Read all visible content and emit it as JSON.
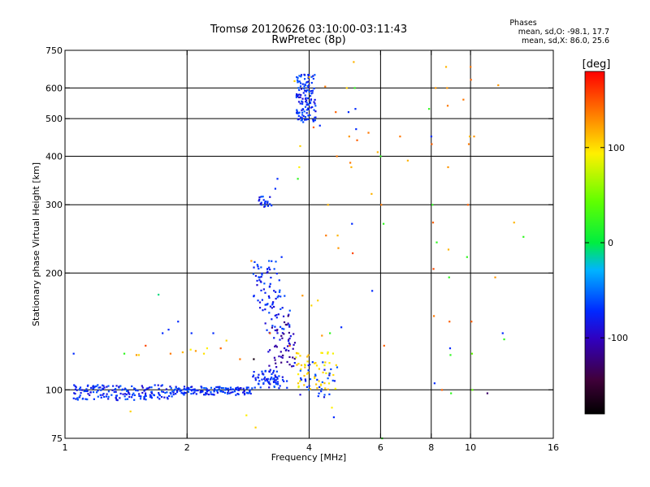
{
  "chart_data": {
    "type": "scatter",
    "title": "Tromsø 20120626 03:10:00-03:11:43",
    "subtitle": "RwPretec (8p)",
    "xlabel": "Frequency [MHz]",
    "ylabel": "Stationary phase Virtual Height [km]",
    "x_scale": "log",
    "y_scale": "log",
    "xlim": [
      1,
      16
    ],
    "ylim": [
      75,
      750
    ],
    "x_ticks": [
      1,
      2,
      4,
      6,
      8,
      10,
      16
    ],
    "x_tick_labels": [
      "1",
      "2",
      "4",
      "6",
      "8",
      "10",
      "16"
    ],
    "y_ticks": [
      75,
      100,
      200,
      300,
      400,
      500,
      600,
      750
    ],
    "y_tick_labels": [
      "75",
      "100",
      "200",
      "300",
      "400",
      "500",
      "600",
      "750"
    ],
    "grid": true,
    "phases_box": {
      "title": "Phases",
      "line1": "mean, sd,O: -98.1, 17.7",
      "line2": "mean, sd,X:  86.0, 25.6"
    },
    "colorbar": {
      "label": "[deg]",
      "min": -180,
      "max": 180,
      "ticks": [
        100,
        0,
        -100
      ],
      "tick_labels": [
        "100",
        "0",
        "-100"
      ]
    },
    "clusters": [
      {
        "x_range": [
          1.05,
          1.85
        ],
        "y_range": [
          94,
          103
        ],
        "phase": -100,
        "count": 170
      },
      {
        "x_range": [
          1.85,
          2.9
        ],
        "y_range": [
          97,
          102
        ],
        "phase": -100,
        "count": 140
      },
      {
        "x_range": [
          2.9,
          3.6
        ],
        "y_range": [
          101,
          112
        ],
        "phase": -100,
        "count": 70
      },
      {
        "x_range": [
          2.9,
          3.4
        ],
        "y_range": [
          160,
          215
        ],
        "phase": -100,
        "count": 55
      },
      {
        "x_range": [
          3.1,
          3.6
        ],
        "y_range": [
          140,
          175
        ],
        "phase": -100,
        "count": 35
      },
      {
        "x_range": [
          3.15,
          3.7
        ],
        "y_range": [
          112,
          150
        ],
        "phase": -120,
        "count": 55
      },
      {
        "x_range": [
          3.0,
          3.25
        ],
        "y_range": [
          296,
          315
        ],
        "phase": -100,
        "count": 22
      },
      {
        "x_range": [
          3.72,
          4.15
        ],
        "y_range": [
          490,
          650
        ],
        "phase": -100,
        "count": 130
      },
      {
        "x_range": [
          3.7,
          4.7
        ],
        "y_range": [
          100,
          125
        ],
        "phase": 95,
        "count": 55
      },
      {
        "x_range": [
          3.8,
          4.7
        ],
        "y_range": [
          95,
          118
        ],
        "phase": -100,
        "count": 35
      }
    ],
    "points": [
      {
        "x": 1.05,
        "y": 124,
        "phase": -100
      },
      {
        "x": 1.28,
        "y": 96,
        "phase": -85
      },
      {
        "x": 1.4,
        "y": 124,
        "phase": 20
      },
      {
        "x": 1.45,
        "y": 88,
        "phase": 100
      },
      {
        "x": 1.5,
        "y": 123,
        "phase": 120
      },
      {
        "x": 1.52,
        "y": 123,
        "phase": 100
      },
      {
        "x": 1.58,
        "y": 130,
        "phase": 150
      },
      {
        "x": 1.7,
        "y": 176,
        "phase": -20
      },
      {
        "x": 1.74,
        "y": 140,
        "phase": -100
      },
      {
        "x": 1.8,
        "y": 143,
        "phase": -100
      },
      {
        "x": 1.82,
        "y": 124,
        "phase": 130
      },
      {
        "x": 1.9,
        "y": 150,
        "phase": -100
      },
      {
        "x": 1.95,
        "y": 125,
        "phase": 110
      },
      {
        "x": 2.04,
        "y": 127,
        "phase": 90
      },
      {
        "x": 2.05,
        "y": 140,
        "phase": -100
      },
      {
        "x": 2.1,
        "y": 126,
        "phase": 120
      },
      {
        "x": 2.2,
        "y": 124,
        "phase": 95
      },
      {
        "x": 2.24,
        "y": 128,
        "phase": 90
      },
      {
        "x": 2.32,
        "y": 140,
        "phase": -100
      },
      {
        "x": 2.42,
        "y": 128,
        "phase": 140
      },
      {
        "x": 2.5,
        "y": 134,
        "phase": 100
      },
      {
        "x": 2.7,
        "y": 120,
        "phase": 130
      },
      {
        "x": 2.8,
        "y": 86,
        "phase": 90
      },
      {
        "x": 2.88,
        "y": 215,
        "phase": 120
      },
      {
        "x": 2.92,
        "y": 120,
        "phase": -170
      },
      {
        "x": 2.95,
        "y": 80,
        "phase": 100
      },
      {
        "x": 3.2,
        "y": 140,
        "phase": 150
      },
      {
        "x": 3.3,
        "y": 330,
        "phase": -100
      },
      {
        "x": 3.34,
        "y": 350,
        "phase": -100
      },
      {
        "x": 3.42,
        "y": 220,
        "phase": -100
      },
      {
        "x": 3.55,
        "y": 155,
        "phase": -140
      },
      {
        "x": 3.58,
        "y": 130,
        "phase": 150
      },
      {
        "x": 3.68,
        "y": 625,
        "phase": 100
      },
      {
        "x": 3.75,
        "y": 350,
        "phase": 20
      },
      {
        "x": 3.78,
        "y": 375,
        "phase": 90
      },
      {
        "x": 3.8,
        "y": 425,
        "phase": 100
      },
      {
        "x": 3.85,
        "y": 175,
        "phase": 120
      },
      {
        "x": 4.0,
        "y": 640,
        "phase": 110
      },
      {
        "x": 4.05,
        "y": 165,
        "phase": 100
      },
      {
        "x": 4.1,
        "y": 475,
        "phase": 140
      },
      {
        "x": 4.2,
        "y": 170,
        "phase": 100
      },
      {
        "x": 4.25,
        "y": 480,
        "phase": -100
      },
      {
        "x": 4.3,
        "y": 138,
        "phase": 120
      },
      {
        "x": 4.38,
        "y": 605,
        "phase": 130
      },
      {
        "x": 4.4,
        "y": 250,
        "phase": 130
      },
      {
        "x": 4.45,
        "y": 300,
        "phase": 110
      },
      {
        "x": 4.5,
        "y": 140,
        "phase": 20
      },
      {
        "x": 4.55,
        "y": 90,
        "phase": 90
      },
      {
        "x": 4.6,
        "y": 85,
        "phase": -100
      },
      {
        "x": 4.65,
        "y": 520,
        "phase": 140
      },
      {
        "x": 4.68,
        "y": 400,
        "phase": 130
      },
      {
        "x": 4.7,
        "y": 250,
        "phase": 110
      },
      {
        "x": 4.72,
        "y": 232,
        "phase": 120
      },
      {
        "x": 4.8,
        "y": 145,
        "phase": -100
      },
      {
        "x": 4.95,
        "y": 600,
        "phase": 100
      },
      {
        "x": 5.0,
        "y": 520,
        "phase": -100
      },
      {
        "x": 5.02,
        "y": 450,
        "phase": 120
      },
      {
        "x": 5.05,
        "y": 385,
        "phase": 130
      },
      {
        "x": 5.08,
        "y": 375,
        "phase": 110
      },
      {
        "x": 5.1,
        "y": 268,
        "phase": -100
      },
      {
        "x": 5.12,
        "y": 225,
        "phase": 150
      },
      {
        "x": 5.15,
        "y": 700,
        "phase": 110
      },
      {
        "x": 5.18,
        "y": 600,
        "phase": 20
      },
      {
        "x": 5.2,
        "y": 530,
        "phase": -100
      },
      {
        "x": 5.22,
        "y": 470,
        "phase": -100
      },
      {
        "x": 5.25,
        "y": 440,
        "phase": 140
      },
      {
        "x": 5.6,
        "y": 460,
        "phase": 130
      },
      {
        "x": 5.7,
        "y": 320,
        "phase": 110
      },
      {
        "x": 5.72,
        "y": 180,
        "phase": -100
      },
      {
        "x": 5.9,
        "y": 410,
        "phase": 110
      },
      {
        "x": 6.0,
        "y": 400,
        "phase": 20
      },
      {
        "x": 6.02,
        "y": 300,
        "phase": 130
      },
      {
        "x": 6.05,
        "y": 75,
        "phase": 20
      },
      {
        "x": 6.1,
        "y": 268,
        "phase": 20
      },
      {
        "x": 6.12,
        "y": 130,
        "phase": 140
      },
      {
        "x": 6.7,
        "y": 450,
        "phase": 130
      },
      {
        "x": 7.0,
        "y": 390,
        "phase": 110
      },
      {
        "x": 7.9,
        "y": 530,
        "phase": 20
      },
      {
        "x": 8.0,
        "y": 450,
        "phase": -100
      },
      {
        "x": 8.02,
        "y": 430,
        "phase": 140
      },
      {
        "x": 8.05,
        "y": 300,
        "phase": 20
      },
      {
        "x": 8.08,
        "y": 270,
        "phase": 140
      },
      {
        "x": 8.1,
        "y": 205,
        "phase": 150
      },
      {
        "x": 8.12,
        "y": 155,
        "phase": 130
      },
      {
        "x": 8.15,
        "y": 104,
        "phase": -100
      },
      {
        "x": 8.2,
        "y": 600,
        "phase": 120
      },
      {
        "x": 8.25,
        "y": 240,
        "phase": 20
      },
      {
        "x": 8.5,
        "y": 100,
        "phase": 140
      },
      {
        "x": 8.7,
        "y": 680,
        "phase": 110
      },
      {
        "x": 8.75,
        "y": 600,
        "phase": 120
      },
      {
        "x": 8.78,
        "y": 540,
        "phase": 130
      },
      {
        "x": 8.8,
        "y": 375,
        "phase": 120
      },
      {
        "x": 8.82,
        "y": 230,
        "phase": 110
      },
      {
        "x": 8.85,
        "y": 195,
        "phase": 20
      },
      {
        "x": 8.87,
        "y": 150,
        "phase": 140
      },
      {
        "x": 8.9,
        "y": 128,
        "phase": -100
      },
      {
        "x": 8.92,
        "y": 123,
        "phase": 20
      },
      {
        "x": 8.95,
        "y": 98,
        "phase": 20
      },
      {
        "x": 9.6,
        "y": 560,
        "phase": 130
      },
      {
        "x": 9.8,
        "y": 220,
        "phase": 20
      },
      {
        "x": 9.85,
        "y": 300,
        "phase": 140
      },
      {
        "x": 9.9,
        "y": 430,
        "phase": 130
      },
      {
        "x": 9.95,
        "y": 450,
        "phase": 110
      },
      {
        "x": 10.0,
        "y": 680,
        "phase": 130
      },
      {
        "x": 10.02,
        "y": 630,
        "phase": 140
      },
      {
        "x": 10.05,
        "y": 150,
        "phase": 140
      },
      {
        "x": 10.08,
        "y": 124,
        "phase": 40
      },
      {
        "x": 10.1,
        "y": 100,
        "phase": 40
      },
      {
        "x": 10.2,
        "y": 450,
        "phase": 120
      },
      {
        "x": 11.0,
        "y": 98,
        "phase": -140
      },
      {
        "x": 11.5,
        "y": 195,
        "phase": 120
      },
      {
        "x": 11.7,
        "y": 610,
        "phase": 120
      },
      {
        "x": 12.0,
        "y": 140,
        "phase": -100
      },
      {
        "x": 12.1,
        "y": 135,
        "phase": 20
      },
      {
        "x": 12.8,
        "y": 270,
        "phase": 110
      },
      {
        "x": 13.5,
        "y": 248,
        "phase": 20
      }
    ]
  }
}
